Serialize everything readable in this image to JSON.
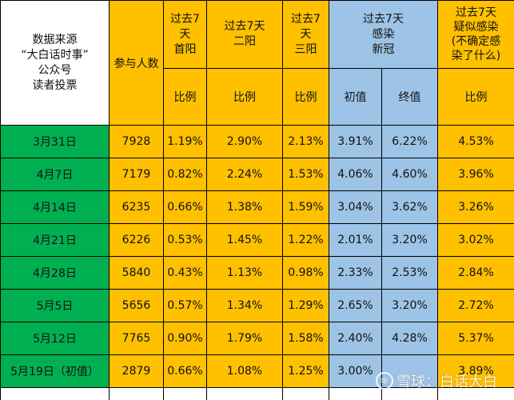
{
  "header": {
    "source": "数据来源\n“大白话时事”\n公众号\n读者投票",
    "participants": "参与人数",
    "col_first_pos": "过去7\n天\n首阳",
    "col_second_pos": "过去7天\n二阳",
    "col_third_pos": "过去7\n天\n三阳",
    "col_infected": "过去7天\n感染\n新冠",
    "col_suspected": "过去7天\n疑似感染\n(不确定感\n染了什么)",
    "sub_ratio": "比例",
    "sub_initial": "初值",
    "sub_final": "终值"
  },
  "rows": [
    {
      "date": "3月31日",
      "n": "7928",
      "first": "1.19%",
      "second": "2.90%",
      "third": "2.13%",
      "inf_init": "3.91%",
      "inf_final": "6.22%",
      "susp": "4.53%"
    },
    {
      "date": "4月7日",
      "n": "7179",
      "first": "0.82%",
      "second": "2.24%",
      "third": "1.53%",
      "inf_init": "4.06%",
      "inf_final": "4.60%",
      "susp": "3.96%"
    },
    {
      "date": "4月14日",
      "n": "6235",
      "first": "0.66%",
      "second": "1.38%",
      "third": "1.59%",
      "inf_init": "3.04%",
      "inf_final": "3.62%",
      "susp": "3.26%"
    },
    {
      "date": "4月21日",
      "n": "6226",
      "first": "0.53%",
      "second": "1.45%",
      "third": "1.22%",
      "inf_init": "2.01%",
      "inf_final": "3.20%",
      "susp": "3.02%"
    },
    {
      "date": "4月28日",
      "n": "5840",
      "first": "0.43%",
      "second": "1.13%",
      "third": "0.98%",
      "inf_init": "2.33%",
      "inf_final": "2.53%",
      "susp": "2.84%"
    },
    {
      "date": "5月5日",
      "n": "5656",
      "first": "0.57%",
      "second": "1.34%",
      "third": "1.29%",
      "inf_init": "2.65%",
      "inf_final": "3.20%",
      "susp": "2.72%"
    },
    {
      "date": "5月12日",
      "n": "7765",
      "first": "0.90%",
      "second": "1.79%",
      "third": "1.58%",
      "inf_init": "2.40%",
      "inf_final": "4.28%",
      "susp": "5.37%"
    },
    {
      "date": "5月19日（初值）",
      "n": "2879",
      "first": "0.66%",
      "second": "1.08%",
      "third": "1.25%",
      "inf_init": "3.00%",
      "inf_final": "",
      "susp": "3.89%"
    }
  ],
  "watermark": {
    "text": "雪球：白话大白",
    "icon": "snowball-logo-icon"
  },
  "colors": {
    "yellow": "#ffc000",
    "blue": "#9dc3e6",
    "green": "#00b050"
  }
}
